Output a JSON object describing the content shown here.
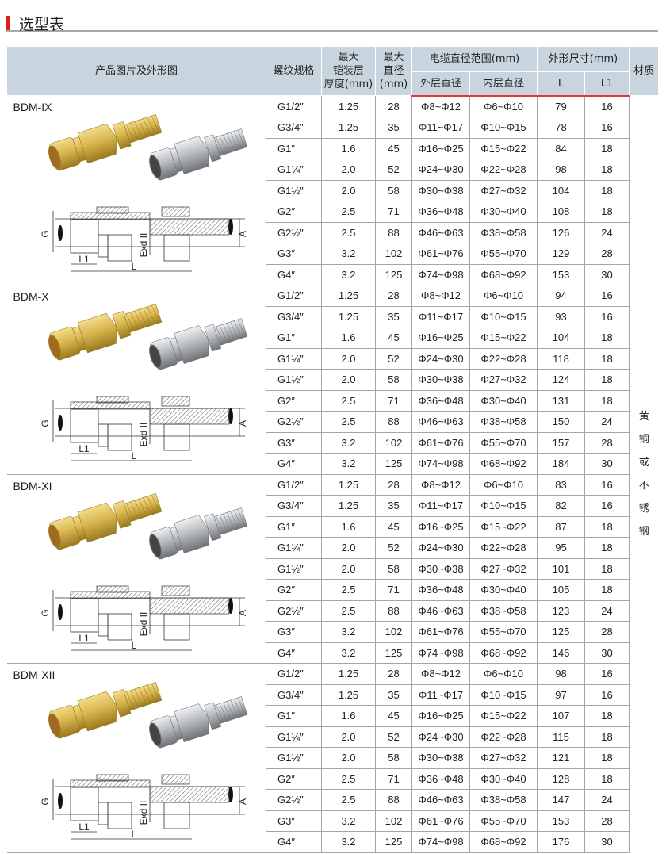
{
  "page_title": "选型表",
  "header": {
    "product": "产品图片及外形图",
    "thread": "螺纹规格",
    "armor_1": "最大",
    "armor_2": "铠装层",
    "armor_3": "厚度(mm)",
    "maxdia_1": "最大",
    "maxdia_2": "直径",
    "maxdia_3": "(mm)",
    "cable_range": "电缆直径范围(mm)",
    "outer_dia": "外层直径",
    "inner_dia": "内层直径",
    "dims": "外形尺寸(mm)",
    "L": "L",
    "L1": "L1",
    "material": "材质"
  },
  "material_value": [
    "黄",
    "铜",
    "或",
    "不",
    "锈",
    "钢"
  ],
  "diagram_labels": {
    "G": "G",
    "L1": "L1",
    "L": "L",
    "exd": "Exd II",
    "A": "A"
  },
  "colors": {
    "accent": "#e02020",
    "header_bg": "#c9d5de",
    "brass": "#d9b650",
    "steel": "#b8bcc0"
  },
  "groups": [
    {
      "model": "BDM-IX",
      "L": [
        "79",
        "78",
        "84",
        "98",
        "104",
        "108",
        "126",
        "129",
        "153"
      ],
      "L1": [
        "16",
        "16",
        "18",
        "18",
        "18",
        "18",
        "24",
        "28",
        "30"
      ]
    },
    {
      "model": "BDM-X",
      "L": [
        "94",
        "93",
        "104",
        "118",
        "124",
        "131",
        "150",
        "157",
        "184"
      ],
      "L1": [
        "16",
        "16",
        "18",
        "18",
        "18",
        "18",
        "24",
        "28",
        "30"
      ]
    },
    {
      "model": "BDM-XI",
      "L": [
        "83",
        "82",
        "87",
        "95",
        "101",
        "105",
        "123",
        "125",
        "146"
      ],
      "L1": [
        "16",
        "16",
        "18",
        "18",
        "18",
        "18",
        "24",
        "28",
        "30"
      ]
    },
    {
      "model": "BDM-XII",
      "L": [
        "98",
        "97",
        "107",
        "115",
        "121",
        "128",
        "147",
        "153",
        "176"
      ],
      "L1": [
        "16",
        "16",
        "18",
        "18",
        "18",
        "18",
        "24",
        "28",
        "30"
      ]
    }
  ],
  "common_rows": [
    {
      "thread": "G1/2″",
      "armor": "1.25",
      "maxdia": "28",
      "outer": "Φ8~Φ12",
      "inner": "Φ6~Φ10"
    },
    {
      "thread": "G3/4″",
      "armor": "1.25",
      "maxdia": "35",
      "outer": "Φ11~Φ17",
      "inner": "Φ10~Φ15"
    },
    {
      "thread": "G1″",
      "armor": "1.6",
      "maxdia": "45",
      "outer": "Φ16~Φ25",
      "inner": "Φ15~Φ22"
    },
    {
      "thread": "G1¼″",
      "armor": "2.0",
      "maxdia": "52",
      "outer": "Φ24~Φ30",
      "inner": "Φ22~Φ28"
    },
    {
      "thread": "G1½″",
      "armor": "2.0",
      "maxdia": "58",
      "outer": "Φ30~Φ38",
      "inner": "Φ27~Φ32"
    },
    {
      "thread": "G2″",
      "armor": "2.5",
      "maxdia": "71",
      "outer": "Φ36~Φ48",
      "inner": "Φ30~Φ40"
    },
    {
      "thread": "G2½″",
      "armor": "2.5",
      "maxdia": "88",
      "outer": "Φ46~Φ63",
      "inner": "Φ38~Φ58"
    },
    {
      "thread": "G3″",
      "armor": "3.2",
      "maxdia": "102",
      "outer": "Φ61~Φ76",
      "inner": "Φ55~Φ70"
    },
    {
      "thread": "G4″",
      "armor": "3.2",
      "maxdia": "125",
      "outer": "Φ74~Φ98",
      "inner": "Φ68~Φ92"
    }
  ]
}
